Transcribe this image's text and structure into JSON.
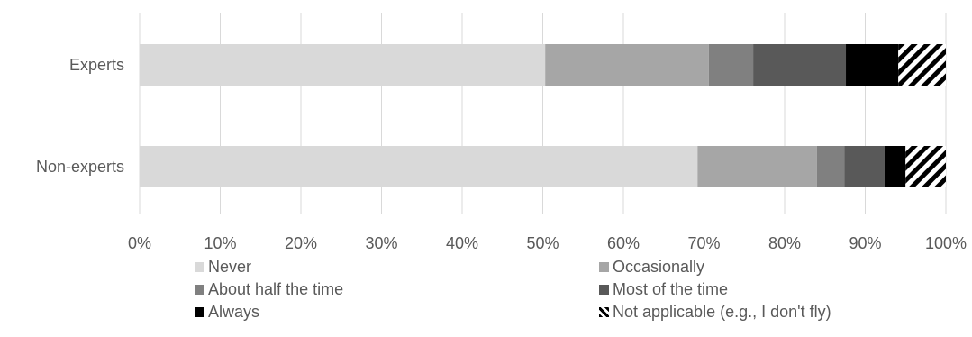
{
  "chart_data": {
    "type": "bar",
    "orientation": "horizontal",
    "stacked": "percent",
    "categories": [
      "Experts",
      "Non-experts"
    ],
    "series": [
      {
        "name": "Never",
        "values": [
          50.3,
          69.2
        ],
        "color": "#d9d9d9"
      },
      {
        "name": "Occasionally",
        "values": [
          20.3,
          14.8
        ],
        "color": "#a6a6a6"
      },
      {
        "name": "About half the time",
        "values": [
          5.5,
          3.4
        ],
        "color": "#808080"
      },
      {
        "name": "Most of the time",
        "values": [
          11.5,
          5.0
        ],
        "color": "#595959"
      },
      {
        "name": "Always",
        "values": [
          6.5,
          2.6
        ],
        "color": "#000000"
      },
      {
        "name": "Not applicable (e.g., I don't fly)",
        "values": [
          5.9,
          5.0
        ],
        "color": "hatched"
      }
    ],
    "xlim": [
      0,
      100
    ],
    "xticks": [
      "0%",
      "10%",
      "20%",
      "30%",
      "40%",
      "50%",
      "60%",
      "70%",
      "80%",
      "90%",
      "100%"
    ],
    "grid": "vertical",
    "legend": "bottom"
  }
}
